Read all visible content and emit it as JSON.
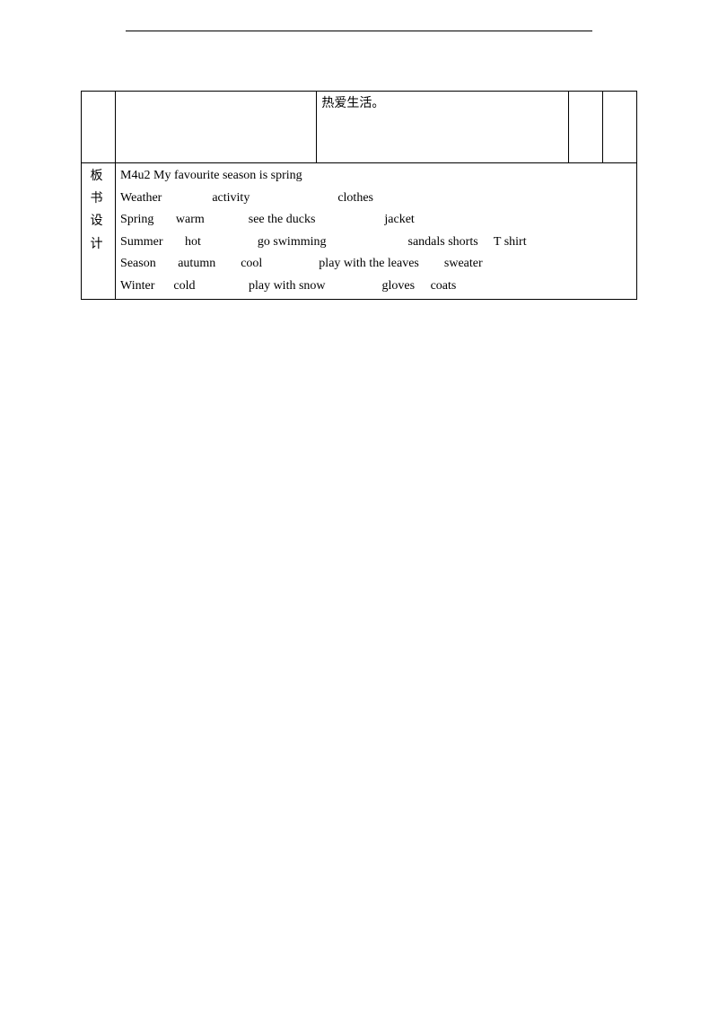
{
  "header_text": "",
  "row1": {
    "cell3_text": "热爱生活。"
  },
  "row2": {
    "label_line1": "板书",
    "label_line2": "设计",
    "lines": {
      "l1": "M4u2 My favourite season is spring",
      "l2": "Weather                activity                            clothes",
      "l3": "Spring       warm              see the ducks                      jacket",
      "l4": "Summer       hot                  go swimming                          sandals shorts     T shirt",
      "l5": "Season       autumn        cool                  play with the leaves        sweater",
      "l6": "Winter      cold                 play with snow                  gloves     coats"
    }
  }
}
